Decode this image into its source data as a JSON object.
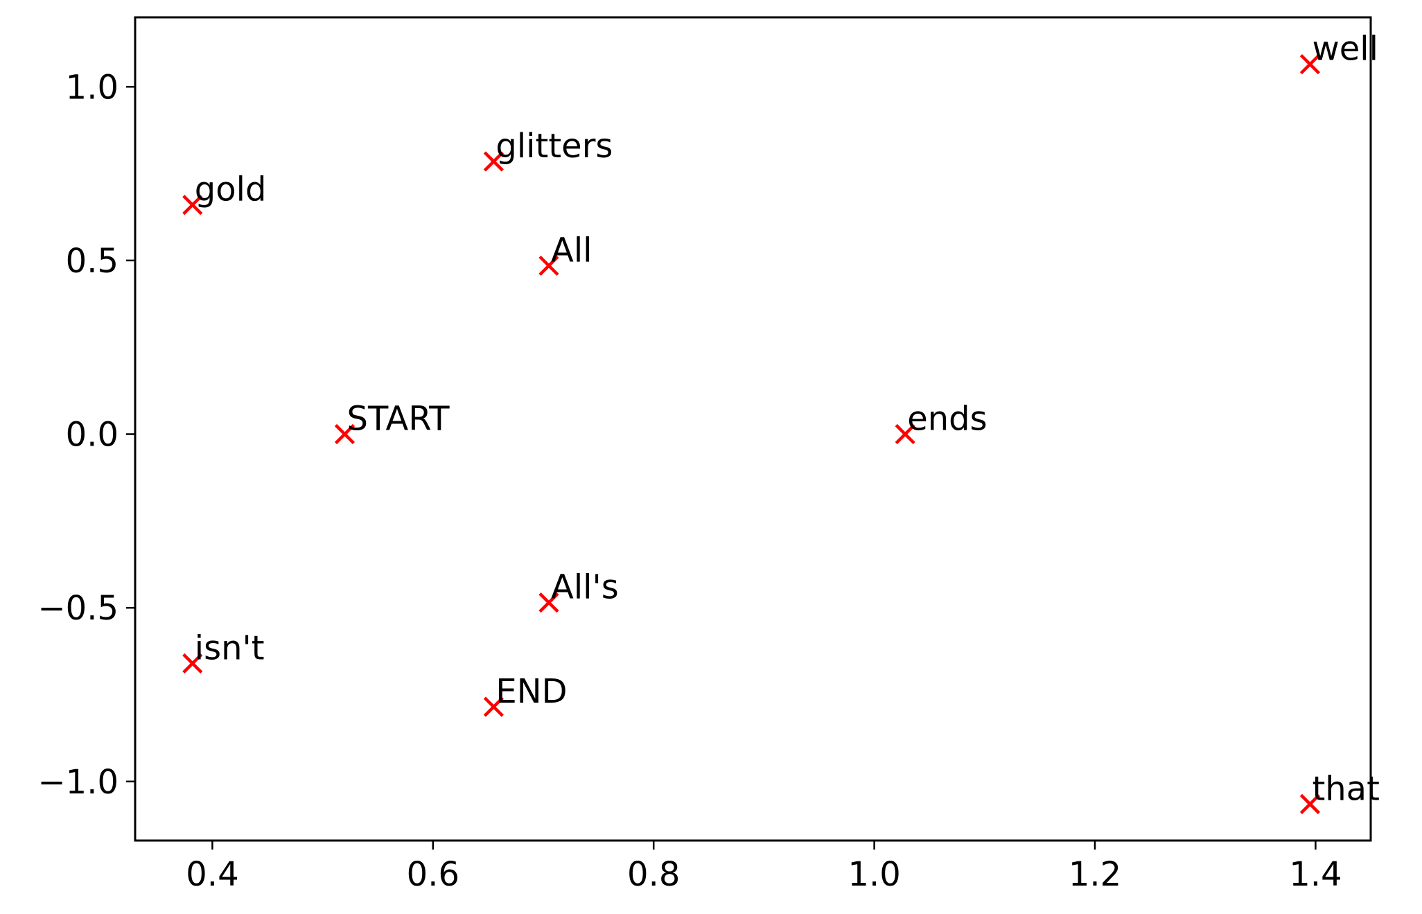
{
  "chart_data": {
    "type": "scatter",
    "title": "",
    "xlabel": "",
    "ylabel": "",
    "xlim": [
      0.33,
      1.45
    ],
    "ylim": [
      -1.17,
      1.2
    ],
    "xticks": [
      0.4,
      0.6,
      0.8,
      1.0,
      1.2,
      1.4
    ],
    "xtick_labels": [
      "0.4",
      "0.6",
      "0.8",
      "1.0",
      "1.2",
      "1.4"
    ],
    "yticks": [
      1.0,
      0.5,
      0.0,
      -0.5,
      -1.0
    ],
    "ytick_labels": [
      "1.0",
      "0.5",
      "0.0",
      "−0.5",
      "−1.0"
    ],
    "grid": false,
    "legend": false,
    "marker": "x",
    "marker_color": "#ff0000",
    "points": [
      {
        "label": "well",
        "x": 1.395,
        "y": 1.065
      },
      {
        "label": "glitters",
        "x": 0.655,
        "y": 0.785
      },
      {
        "label": "gold",
        "x": 0.382,
        "y": 0.66
      },
      {
        "label": "All",
        "x": 0.705,
        "y": 0.485
      },
      {
        "label": "START",
        "x": 0.52,
        "y": 0.0
      },
      {
        "label": "ends",
        "x": 1.028,
        "y": 0.0
      },
      {
        "label": "All's",
        "x": 0.705,
        "y": -0.485
      },
      {
        "label": "isn't",
        "x": 0.382,
        "y": -0.66
      },
      {
        "label": "END",
        "x": 0.655,
        "y": -0.785
      },
      {
        "label": "that",
        "x": 1.395,
        "y": -1.065
      }
    ]
  }
}
